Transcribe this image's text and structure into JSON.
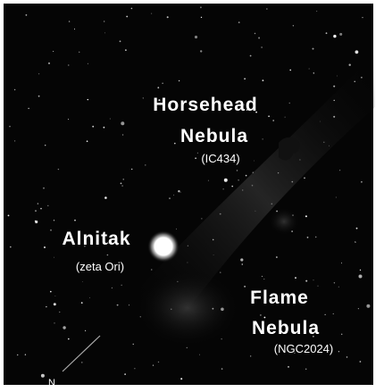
{
  "labels": [
    {
      "lines": [
        "Horsehead",
        "Nebula"
      ],
      "sub": "(IC434)"
    },
    {
      "lines": [
        "Alnitak"
      ],
      "sub": "(zeta Ori)"
    },
    {
      "lines": [
        "Flame",
        "Nebula"
      ],
      "sub": "(NGC2024)"
    }
  ],
  "compass": "N"
}
